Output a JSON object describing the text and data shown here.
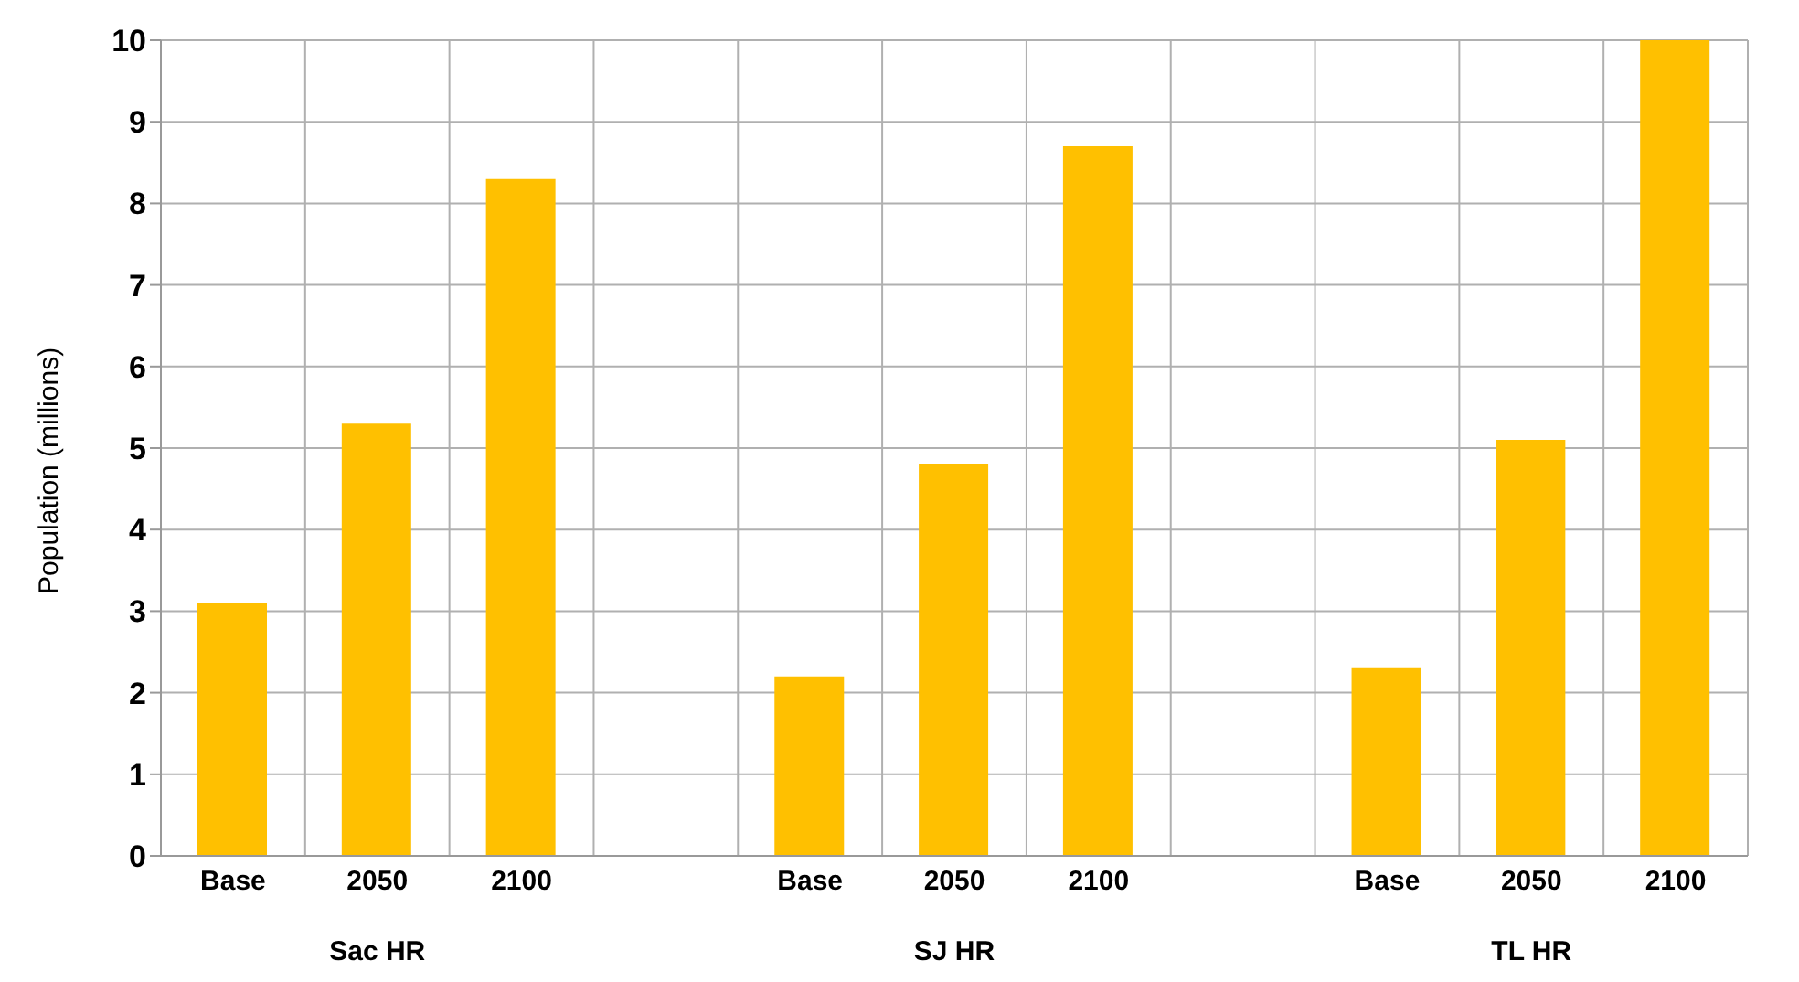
{
  "chart_data": {
    "type": "bar",
    "ylabel": "Population (millions)",
    "categories": [
      "Base",
      "2050",
      "2100",
      null,
      "Base",
      "2050",
      "2100",
      null,
      "Base",
      "2050",
      "2100"
    ],
    "values": [
      3.1,
      5.3,
      8.3,
      null,
      2.2,
      4.8,
      8.7,
      null,
      2.3,
      5.1,
      10.0
    ],
    "color": "#ffc000",
    "ylim": [
      0,
      10
    ],
    "yticks": [
      0,
      1,
      2,
      3,
      4,
      5,
      6,
      7,
      8,
      9,
      10
    ],
    "grid": true,
    "annotations": [
      "Sac HR",
      "SJ HR",
      "TL HR"
    ]
  }
}
